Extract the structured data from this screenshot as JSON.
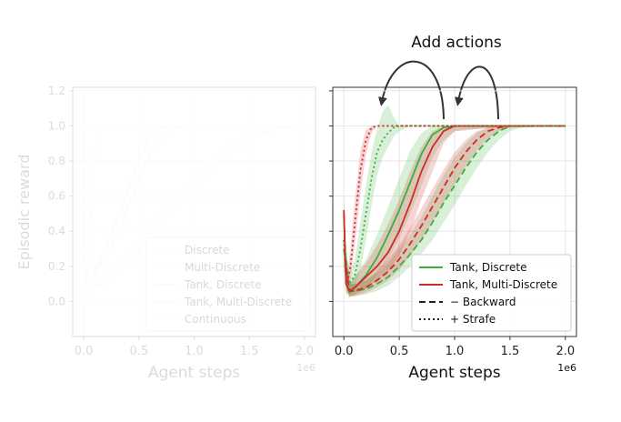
{
  "annotation": {
    "text": "Add actions"
  },
  "chart_data": [
    {
      "type": "line",
      "xlabel": "Agent steps",
      "ylabel": "Episodic reward",
      "x_offset_label": "1e6",
      "xlim": [
        -0.1,
        2.1
      ],
      "ylim": [
        -0.2,
        1.22
      ],
      "x_ticks": [
        0.0,
        0.5,
        1.0,
        1.5,
        2.0
      ],
      "x_tick_labels": [
        "0.0",
        "0.5",
        "1.0",
        "1.5",
        "2.0"
      ],
      "y_ticks": [
        0.0,
        0.2,
        0.4,
        0.6,
        0.8,
        1.0,
        1.2
      ],
      "y_tick_labels": [
        "0.0",
        "0.2",
        "0.4",
        "0.6",
        "0.8",
        "1.0",
        "1.2"
      ],
      "grid": true,
      "faded": true,
      "legend_position": "lower-right",
      "series": [
        {
          "name": "Discrete",
          "color": "#fbe8e6",
          "x": [
            0,
            0.05,
            0.2,
            0.4,
            0.6,
            0.8,
            1.0,
            1.2,
            1.4,
            1.6,
            1.8,
            2.0
          ],
          "y": [
            0.05,
            0.07,
            0.1,
            0.22,
            0.38,
            0.52,
            0.66,
            0.78,
            0.88,
            0.96,
            0.99,
            1.0
          ]
        },
        {
          "name": "Multi-Discrete",
          "color": "#ffeee0",
          "x": [
            0,
            0.05,
            0.2,
            0.4,
            0.6,
            0.8,
            1.0,
            1.2,
            1.4,
            1.6,
            1.8,
            2.0
          ],
          "y": [
            0.05,
            0.08,
            0.12,
            0.25,
            0.42,
            0.57,
            0.7,
            0.82,
            0.91,
            0.97,
            1.0,
            1.0
          ]
        },
        {
          "name": "Tank, Discrete",
          "color": "#fde6e2",
          "x": [
            0,
            0.05,
            0.2,
            0.35,
            0.5,
            0.65,
            0.8,
            1.0,
            1.5,
            2.0
          ],
          "y": [
            0.1,
            0.12,
            0.25,
            0.45,
            0.7,
            0.9,
            0.99,
            1.0,
            1.0,
            1.0
          ]
        },
        {
          "name": "Tank, Multi-Discrete",
          "color": "#fce2e6",
          "x": [
            0,
            0.05,
            0.2,
            0.35,
            0.5,
            0.6,
            0.7,
            0.9,
            1.5,
            2.0
          ],
          "y": [
            0.1,
            0.12,
            0.3,
            0.55,
            0.8,
            0.94,
            0.99,
            1.0,
            1.0,
            1.0
          ]
        },
        {
          "name": "Continuous",
          "color": "#fff2e0",
          "x": [
            -0.02,
            0.0,
            0.03,
            0.08,
            0.12,
            0.5,
            1.0,
            1.5,
            2.0
          ],
          "y": [
            0.55,
            0.3,
            0.1,
            0.7,
            1.0,
            1.0,
            1.0,
            1.0,
            1.0
          ]
        }
      ]
    },
    {
      "type": "line",
      "xlabel": "Agent steps",
      "ylabel": "",
      "x_offset_label": "1e6",
      "xlim": [
        -0.1,
        2.1
      ],
      "ylim": [
        -0.2,
        1.22
      ],
      "x_ticks": [
        0.0,
        0.5,
        1.0,
        1.5,
        2.0
      ],
      "x_tick_labels": [
        "0.0",
        "0.5",
        "1.0",
        "1.5",
        "2.0"
      ],
      "y_ticks": [
        0.0,
        0.2,
        0.4,
        0.6,
        0.8,
        1.0,
        1.2
      ],
      "grid": true,
      "legend_position": "lower-right",
      "legend": [
        {
          "label": "Tank, Discrete",
          "color": "#3ab03a",
          "dash": "solid"
        },
        {
          "label": "Tank, Multi-Discrete",
          "color": "#d62728",
          "dash": "solid"
        },
        {
          "label": "− Backward",
          "color": "#222222",
          "dash": "dashed"
        },
        {
          "label": "+ Strafe",
          "color": "#222222",
          "dash": "dotted"
        }
      ],
      "series": [
        {
          "name": "Tank, Discrete",
          "color": "#3ab03a",
          "dash": "solid",
          "x": [
            0,
            0.02,
            0.05,
            0.1,
            0.2,
            0.3,
            0.4,
            0.5,
            0.6,
            0.7,
            0.8,
            0.9,
            1.0,
            1.5,
            2.0
          ],
          "y": [
            0.5,
            0.1,
            0.05,
            0.08,
            0.15,
            0.25,
            0.38,
            0.52,
            0.68,
            0.84,
            0.95,
            0.99,
            1.0,
            1.0,
            1.0
          ],
          "lo": [
            0.3,
            0.05,
            0.02,
            0.04,
            0.08,
            0.15,
            0.24,
            0.36,
            0.5,
            0.66,
            0.82,
            0.92,
            0.97,
            1.0,
            1.0
          ],
          "hi": [
            0.6,
            0.2,
            0.1,
            0.14,
            0.24,
            0.38,
            0.54,
            0.7,
            0.86,
            0.96,
            1.0,
            1.0,
            1.0,
            1.0,
            1.0
          ]
        },
        {
          "name": "Tank, Multi-Discrete",
          "color": "#d62728",
          "dash": "solid",
          "x": [
            0,
            0.02,
            0.05,
            0.1,
            0.2,
            0.3,
            0.4,
            0.5,
            0.6,
            0.7,
            0.8,
            0.9,
            1.0,
            1.5,
            2.0
          ],
          "y": [
            0.52,
            0.1,
            0.06,
            0.08,
            0.14,
            0.2,
            0.28,
            0.4,
            0.56,
            0.74,
            0.88,
            0.97,
            1.0,
            1.0,
            1.0
          ],
          "lo": [
            0.3,
            0.05,
            0.03,
            0.04,
            0.07,
            0.12,
            0.17,
            0.26,
            0.4,
            0.58,
            0.74,
            0.9,
            0.97,
            1.0,
            1.0
          ],
          "hi": [
            0.6,
            0.18,
            0.1,
            0.14,
            0.22,
            0.32,
            0.44,
            0.58,
            0.74,
            0.88,
            0.97,
            1.0,
            1.0,
            1.0,
            1.0
          ]
        },
        {
          "name": "Tank, Discrete − Backward",
          "color": "#3ab03a",
          "dash": "dashed",
          "x": [
            0,
            0.05,
            0.1,
            0.2,
            0.3,
            0.4,
            0.5,
            0.6,
            0.7,
            0.8,
            0.9,
            1.0,
            1.1,
            1.2,
            1.3,
            1.4,
            1.5,
            1.6,
            2.0
          ],
          "y": [
            0.35,
            0.06,
            0.06,
            0.07,
            0.1,
            0.14,
            0.2,
            0.27,
            0.35,
            0.45,
            0.56,
            0.66,
            0.76,
            0.85,
            0.92,
            0.97,
            1.0,
            1.0,
            1.0
          ],
          "lo": [
            0.2,
            0.03,
            0.03,
            0.04,
            0.06,
            0.09,
            0.14,
            0.2,
            0.27,
            0.35,
            0.45,
            0.55,
            0.66,
            0.76,
            0.85,
            0.92,
            0.97,
            0.99,
            1.0
          ],
          "hi": [
            0.45,
            0.1,
            0.1,
            0.12,
            0.16,
            0.22,
            0.3,
            0.38,
            0.48,
            0.6,
            0.72,
            0.82,
            0.9,
            0.96,
            0.99,
            1.0,
            1.0,
            1.0,
            1.0
          ]
        },
        {
          "name": "Tank, Multi-Discrete − Backward",
          "color": "#d62728",
          "dash": "dashed",
          "x": [
            0,
            0.05,
            0.1,
            0.2,
            0.3,
            0.4,
            0.5,
            0.6,
            0.7,
            0.8,
            0.9,
            1.0,
            1.1,
            1.2,
            1.3,
            1.4,
            1.5,
            2.0
          ],
          "y": [
            0.3,
            0.06,
            0.06,
            0.08,
            0.12,
            0.17,
            0.24,
            0.33,
            0.43,
            0.54,
            0.65,
            0.76,
            0.85,
            0.92,
            0.97,
            0.99,
            1.0,
            1.0
          ],
          "lo": [
            0.2,
            0.03,
            0.03,
            0.05,
            0.08,
            0.12,
            0.18,
            0.26,
            0.35,
            0.45,
            0.56,
            0.67,
            0.77,
            0.86,
            0.93,
            0.97,
            0.99,
            1.0
          ],
          "hi": [
            0.4,
            0.1,
            0.1,
            0.12,
            0.17,
            0.24,
            0.32,
            0.42,
            0.53,
            0.64,
            0.75,
            0.85,
            0.92,
            0.97,
            0.99,
            1.0,
            1.0,
            1.0
          ]
        },
        {
          "name": "Tank, Discrete + Strafe",
          "color": "#3ab03a",
          "dash": "dotted",
          "x": [
            0,
            0.05,
            0.1,
            0.15,
            0.2,
            0.25,
            0.3,
            0.35,
            0.4,
            0.45,
            0.5,
            0.6,
            1.0,
            2.0
          ],
          "y": [
            0.3,
            0.1,
            0.15,
            0.3,
            0.5,
            0.7,
            0.85,
            0.92,
            0.96,
            0.99,
            1.0,
            1.0,
            1.0,
            1.0
          ],
          "lo": [
            0.2,
            0.05,
            0.08,
            0.18,
            0.35,
            0.55,
            0.72,
            0.82,
            0.88,
            0.94,
            0.97,
            1.0,
            1.0,
            1.0
          ],
          "hi": [
            0.4,
            0.16,
            0.24,
            0.45,
            0.66,
            0.85,
            0.98,
            1.08,
            1.12,
            1.05,
            1.0,
            1.0,
            1.0,
            1.0
          ]
        },
        {
          "name": "Tank, Multi-Discrete + Strafe",
          "color": "#d62728",
          "dash": "dotted",
          "x": [
            0,
            0.03,
            0.06,
            0.1,
            0.15,
            0.2,
            0.25,
            0.3,
            0.5,
            1.0,
            2.0
          ],
          "y": [
            0.35,
            0.1,
            0.2,
            0.45,
            0.75,
            0.92,
            0.99,
            1.0,
            1.0,
            1.0,
            1.0
          ],
          "lo": [
            0.25,
            0.05,
            0.12,
            0.33,
            0.62,
            0.84,
            0.96,
            1.0,
            1.0,
            1.0,
            1.0
          ],
          "hi": [
            0.45,
            0.16,
            0.3,
            0.58,
            0.86,
            0.98,
            1.0,
            1.0,
            1.0,
            1.0,
            1.0
          ]
        }
      ]
    }
  ]
}
